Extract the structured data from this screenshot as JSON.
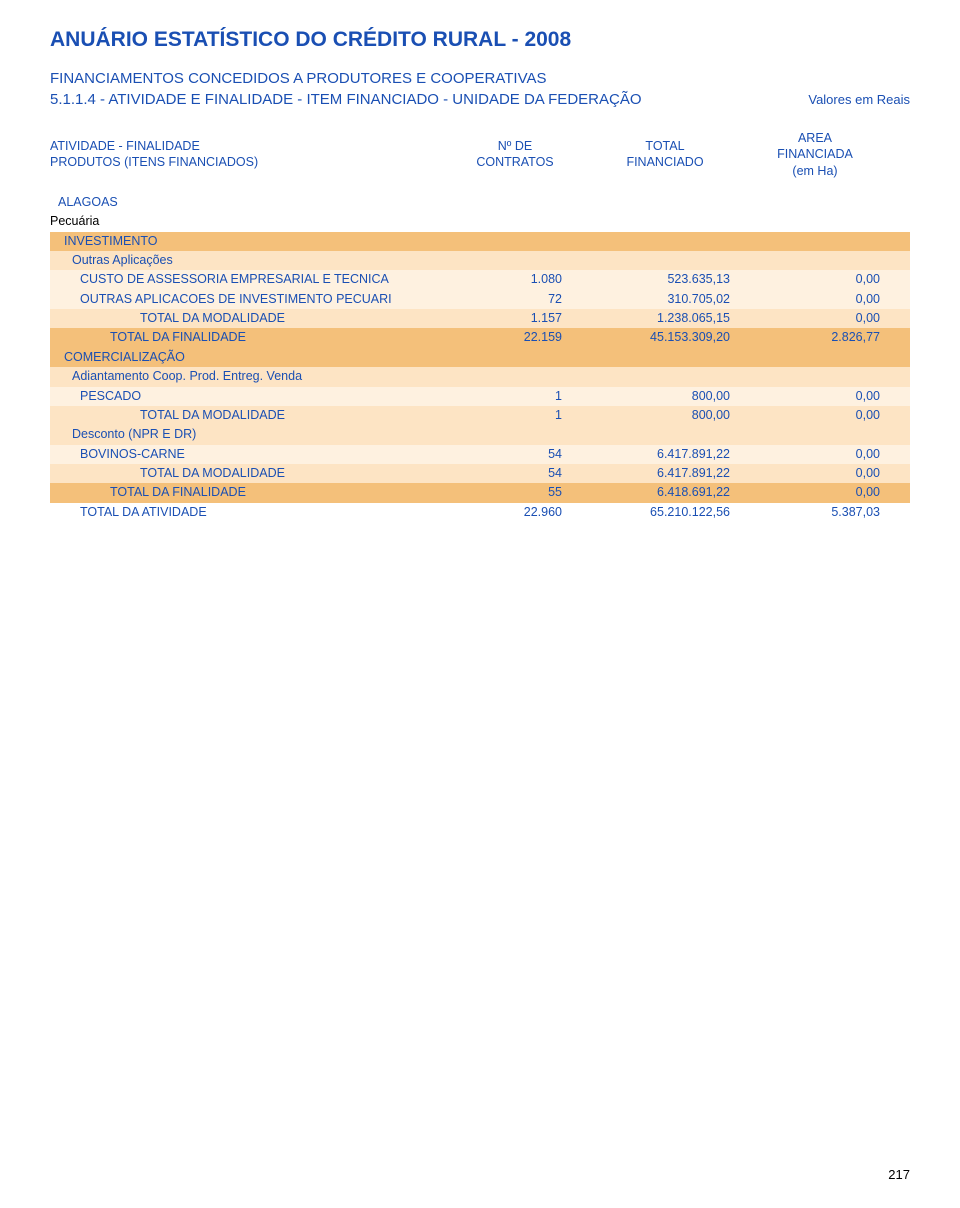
{
  "title": "ANUÁRIO ESTATÍSTICO DO CRÉDITO RURAL - 2008",
  "subtitle": "FINANCIAMENTOS CONCEDIDOS A PRODUTORES E COOPERATIVAS",
  "section_code": "5.1.1.4 - ATIVIDADE E FINALIDADE - ITEM FINANCIADO - UNIDADE DA FEDERAÇÃO",
  "values_note": "Valores em  Reais",
  "header": {
    "left1": "ATIVIDADE - FINALIDADE",
    "left2": "PRODUTOS (ITENS FINANCIADOS)",
    "col1a": "Nº DE",
    "col1b": "CONTRATOS",
    "col2a": "TOTAL",
    "col2b": "FINANCIADO",
    "col3a": "AREA",
    "col3b": "FINANCIADA",
    "col3c": "(em Ha)"
  },
  "region": "ALAGOAS",
  "activity": "Pecuária",
  "fin1": "INVESTIMENTO",
  "mod1": "Outras Aplicações",
  "p1": {
    "label": "CUSTO DE ASSESSORIA EMPRESARIAL E TECNICA",
    "n": "1.080",
    "t": "523.635,13",
    "a": "0,00"
  },
  "p2": {
    "label": "OUTRAS APLICACOES DE INVESTIMENTO PECUARI",
    "n": "72",
    "t": "310.705,02",
    "a": "0,00"
  },
  "tm1": {
    "label": "TOTAL DA MODALIDADE",
    "n": "1.157",
    "t": "1.238.065,15",
    "a": "0,00"
  },
  "tf1": {
    "label": "TOTAL DA FINALIDADE",
    "n": "22.159",
    "t": "45.153.309,20",
    "a": "2.826,77"
  },
  "fin2": "COMERCIALIZAÇÃO",
  "mod2": "Adiantamento Coop. Prod. Entreg. Venda",
  "p3": {
    "label": "PESCADO",
    "n": "1",
    "t": "800,00",
    "a": "0,00"
  },
  "tm2": {
    "label": "TOTAL DA MODALIDADE",
    "n": "1",
    "t": "800,00",
    "a": "0,00"
  },
  "mod3": "Desconto (NPR E DR)",
  "p4": {
    "label": "BOVINOS-CARNE",
    "n": "54",
    "t": "6.417.891,22",
    "a": "0,00"
  },
  "tm3": {
    "label": "TOTAL DA MODALIDADE",
    "n": "54",
    "t": "6.417.891,22",
    "a": "0,00"
  },
  "tf2": {
    "label": "TOTAL DA FINALIDADE",
    "n": "55",
    "t": "6.418.691,22",
    "a": "0,00"
  },
  "ta": {
    "label": "TOTAL DA ATIVIDADE",
    "n": "22.960",
    "t": "65.210.122,56",
    "a": "5.387,03"
  },
  "page_number": "217",
  "colors": {
    "brand": "#1a4fb3",
    "band_dark": "#f4c07a",
    "band_mid": "#fde4c4",
    "band_light": "#fef1e0",
    "text": "#000000",
    "background": "#ffffff"
  }
}
